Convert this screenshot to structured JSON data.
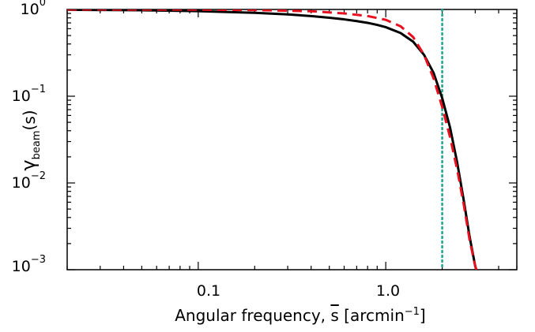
{
  "chart_data": {
    "type": "line",
    "xlabel": {
      "main": "Angular frequency, ",
      "var": "s",
      "unit_open": "  [arcmin",
      "unit_exp": "−1",
      "unit_close": "]"
    },
    "ylabel": {
      "greek": "γ",
      "sub": "beam",
      "arg": "(s)"
    },
    "xscale": "log",
    "yscale": "log",
    "xlim": [
      0.02,
      5.0
    ],
    "ylim": [
      0.001,
      1.0
    ],
    "x_ticks": [
      {
        "value": 0.1,
        "label": "0.1"
      },
      {
        "value": 1.0,
        "label": "1.0"
      }
    ],
    "y_ticks": [
      {
        "value": 1,
        "base": "10",
        "exp": "0"
      },
      {
        "value": 0.1,
        "base": "10",
        "exp": "−1"
      },
      {
        "value": 0.01,
        "base": "10",
        "exp": "−2"
      },
      {
        "value": 0.001,
        "base": "10",
        "exp": "−3"
      }
    ],
    "series": [
      {
        "style": "solid",
        "color": "#000000",
        "x": [
          0.02,
          0.05,
          0.1,
          0.2,
          0.3,
          0.4,
          0.5,
          0.6,
          0.7,
          0.8,
          0.9,
          1.0,
          1.2,
          1.4,
          1.6,
          1.8,
          2.0,
          2.2,
          2.4,
          2.6,
          2.8,
          3.0,
          3.2
        ],
        "y": [
          0.992,
          0.978,
          0.957,
          0.916,
          0.877,
          0.839,
          0.803,
          0.769,
          0.735,
          0.701,
          0.664,
          0.625,
          0.535,
          0.425,
          0.3,
          0.185,
          0.095,
          0.044,
          0.0175,
          0.0065,
          0.0024,
          0.0011,
          0.0007
        ]
      },
      {
        "style": "dashed",
        "color": "#e8101e",
        "x": [
          0.02,
          0.1,
          0.2,
          0.4,
          0.6,
          0.8,
          1.0,
          1.2,
          1.4,
          1.6,
          1.8,
          2.0,
          2.2,
          2.4,
          2.6,
          2.8,
          3.0,
          3.2
        ],
        "y": [
          1.0,
          0.996,
          0.985,
          0.955,
          0.9,
          0.84,
          0.76,
          0.64,
          0.48,
          0.3,
          0.16,
          0.075,
          0.034,
          0.0145,
          0.0058,
          0.0022,
          0.0011,
          0.0007
        ]
      }
    ],
    "vline": {
      "x": 2.0,
      "style": "dotted",
      "color": "#1aa38a"
    }
  }
}
